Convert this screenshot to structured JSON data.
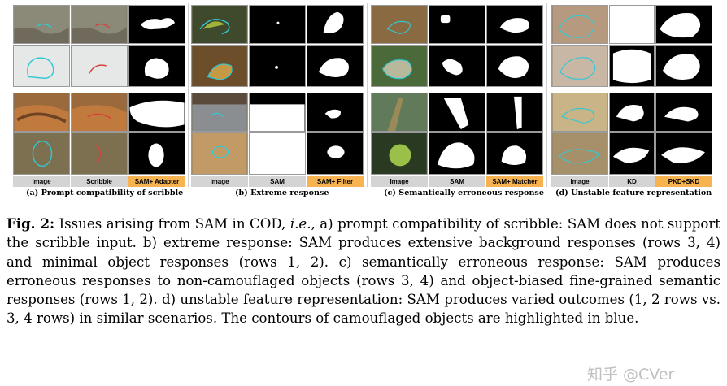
{
  "panels": [
    {
      "labels": [
        "Image",
        "Scribble",
        "SAM+ Adapter"
      ],
      "caption": "(a) Prompt compatibility of scribble"
    },
    {
      "labels": [
        "Image",
        "SAM",
        "SAM+ Filter"
      ],
      "caption": "(b) Extreme response"
    },
    {
      "labels": [
        "Image",
        "SAM",
        "SAM+ Matcher"
      ],
      "caption": "(c) Semantically erroneous response"
    },
    {
      "labels": [
        "Image",
        "KD",
        "PKD+SKD"
      ],
      "caption": "(d) Unstable feature representation"
    }
  ],
  "caption": {
    "figure_label": "Fig. 2:",
    "lead": " Issues arising from SAM in COD, ",
    "ie": "i.e.",
    "body": ", a) prompt compatibility of scribble: SAM does not support the scribble input. b) extreme response: SAM produces extensive background responses (rows 3, 4) and minimal object responses (rows 1, 2). c) semantically erroneous response: SAM produces erroneous responses to non-camouflaged objects (rows 3, 4) and object-biased fine-grained semantic responses (rows 1, 2). d) unstable feature representation: SAM produces varied outcomes (1, 2 rows vs. 3, 4 rows) in similar scenarios. The contours of camouflaged objects are highlighted in blue."
  },
  "watermark": "知乎 @CVer",
  "colors": {
    "scribble_contour": "#31c8d6",
    "orange_label": "#f6b34f",
    "grey_label": "#d4d4d4"
  }
}
